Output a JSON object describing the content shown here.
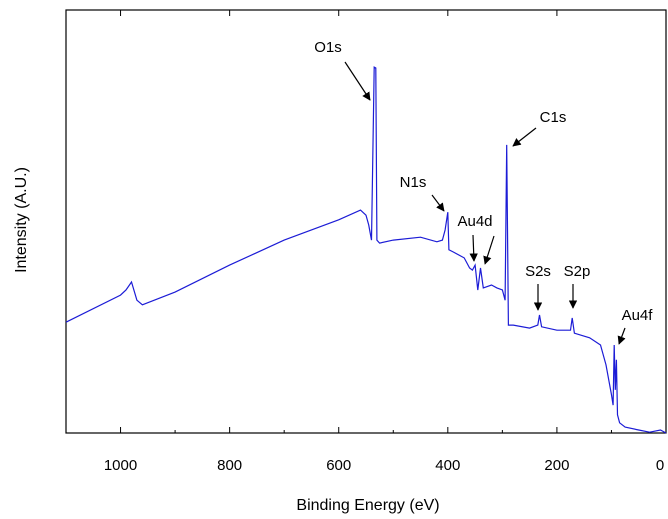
{
  "chart_data": {
    "type": "line",
    "xlabel": "Binding Energy (eV)",
    "ylabel": "Intensity (A.U.)",
    "color": "#1c1cd6",
    "xlim": [
      1100,
      0
    ],
    "ylim": [
      0,
      100
    ],
    "xticks": [
      1000,
      800,
      600,
      400,
      200,
      0
    ],
    "xminorticks": [
      1100,
      900,
      700,
      500,
      300,
      100
    ],
    "x": [
      1100,
      1000,
      990,
      980,
      970,
      960,
      900,
      800,
      700,
      600,
      560,
      550,
      545,
      540,
      535,
      532,
      530,
      525,
      500,
      450,
      420,
      410,
      405,
      400,
      398,
      390,
      370,
      360,
      355,
      350,
      345,
      340,
      335,
      320,
      310,
      300,
      295,
      292,
      289,
      280,
      250,
      235,
      232,
      228,
      200,
      175,
      172,
      168,
      140,
      120,
      110,
      100,
      97,
      95,
      93,
      91,
      89,
      85,
      75,
      50,
      30,
      10,
      0
    ],
    "values": [
      26.2,
      32.6,
      33.8,
      35.7,
      31.4,
      30.3,
      33.3,
      39.7,
      45.6,
      50.4,
      52.7,
      51.5,
      49.2,
      45.6,
      86.5,
      86.3,
      45.6,
      44.9,
      45.6,
      46.3,
      45.2,
      45.6,
      48.0,
      52.2,
      43.3,
      42.8,
      41.4,
      39.0,
      38.5,
      39.7,
      33.8,
      39.0,
      34.3,
      35.0,
      34.3,
      33.8,
      31.4,
      68.1,
      25.5,
      25.5,
      24.8,
      25.5,
      27.9,
      25.1,
      24.3,
      24.3,
      27.2,
      23.6,
      22.5,
      20.8,
      16.1,
      9.0,
      6.6,
      20.8,
      10.2,
      17.3,
      4.3,
      2.4,
      1.4,
      0.7,
      0.2,
      0.7,
      0
    ],
    "annotations": [
      "O1s",
      "N1s",
      "Au4d",
      "C1s",
      "S2s",
      "S2p",
      "Au4f"
    ]
  }
}
